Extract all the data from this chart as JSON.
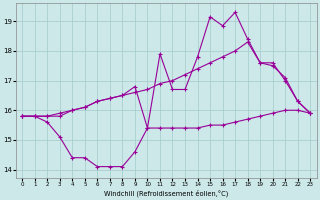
{
  "xlabel": "Windchill (Refroidissement éolien,°C)",
  "bg_color": "#cce8e8",
  "grid_color": "#aacece",
  "line_color": "#990099",
  "x_ticks": [
    0,
    1,
    2,
    3,
    4,
    5,
    6,
    7,
    8,
    9,
    10,
    11,
    12,
    13,
    14,
    15,
    16,
    17,
    18,
    19,
    20,
    21,
    22,
    23
  ],
  "ylim": [
    13.7,
    19.6
  ],
  "xlim": [
    -0.5,
    23.5
  ],
  "yticks": [
    14,
    15,
    16,
    17,
    18,
    19
  ],
  "line1_x": [
    0,
    1,
    2,
    3,
    4,
    5,
    6,
    7,
    8,
    9,
    10,
    11,
    12,
    13,
    14,
    15,
    16,
    17,
    18,
    19,
    20,
    21,
    22,
    23
  ],
  "line1_y": [
    15.8,
    15.8,
    15.6,
    15.1,
    14.4,
    14.4,
    14.1,
    14.1,
    14.1,
    14.6,
    15.4,
    15.4,
    15.4,
    15.4,
    15.4,
    15.5,
    15.5,
    15.6,
    15.7,
    15.8,
    15.9,
    16.0,
    16.0,
    15.9
  ],
  "line2_x": [
    0,
    1,
    2,
    3,
    4,
    5,
    6,
    7,
    8,
    9,
    10,
    11,
    12,
    13,
    14,
    15,
    16,
    17,
    18,
    19,
    20,
    21,
    22,
    23
  ],
  "line2_y": [
    15.8,
    15.8,
    15.8,
    15.9,
    16.0,
    16.1,
    16.3,
    16.4,
    16.5,
    16.6,
    16.7,
    16.9,
    17.0,
    17.2,
    17.4,
    17.6,
    17.8,
    18.0,
    18.3,
    17.6,
    17.5,
    17.1,
    16.3,
    15.9
  ],
  "line3_x": [
    0,
    1,
    2,
    3,
    4,
    5,
    6,
    7,
    8,
    9,
    10,
    11,
    12,
    13,
    14,
    15,
    16,
    17,
    18,
    19,
    20,
    21,
    22,
    23
  ],
  "line3_y": [
    15.8,
    15.8,
    15.8,
    15.8,
    16.0,
    16.1,
    16.3,
    16.4,
    16.5,
    16.8,
    15.4,
    17.9,
    16.7,
    16.7,
    17.8,
    19.15,
    18.85,
    19.3,
    18.4,
    17.6,
    17.6,
    17.0,
    16.3,
    15.9
  ]
}
